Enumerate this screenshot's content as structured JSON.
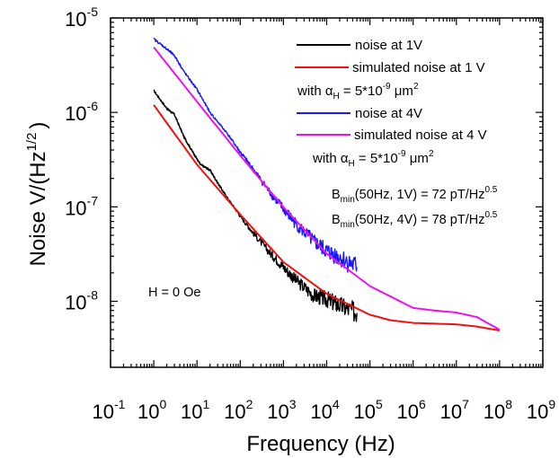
{
  "chart_data": {
    "type": "line",
    "xlabel": "Frequency (Hz)",
    "ylabel": "Noise V/(Hz",
    "ylabel_sup": "1/2",
    "ylabel_close": ")",
    "x_scale": "log",
    "y_scale": "log",
    "xlim": [
      0.1,
      1000000000
    ],
    "ylim": [
      2e-09,
      1e-05
    ],
    "x_ticks": [
      {
        "base": "10",
        "exp": "-1"
      },
      {
        "base": "10",
        "exp": "0"
      },
      {
        "base": "10",
        "exp": "1"
      },
      {
        "base": "10",
        "exp": "2"
      },
      {
        "base": "10",
        "exp": "3"
      },
      {
        "base": "10",
        "exp": "4"
      },
      {
        "base": "10",
        "exp": "5"
      },
      {
        "base": "10",
        "exp": "6"
      },
      {
        "base": "10",
        "exp": "7"
      },
      {
        "base": "10",
        "exp": "8"
      },
      {
        "base": "10",
        "exp": "9"
      }
    ],
    "y_ticks": [
      {
        "base": "10",
        "exp": "-8"
      },
      {
        "base": "10",
        "exp": "-7"
      },
      {
        "base": "10",
        "exp": "-6"
      },
      {
        "base": "10",
        "exp": "-5"
      }
    ],
    "series": [
      {
        "name": "noise at 1V",
        "color": "#000000",
        "noisy": true,
        "x": [
          1,
          2,
          3,
          5,
          8,
          12,
          20,
          30,
          50,
          100,
          200,
          500,
          1000,
          2000,
          5000,
          10000,
          20000,
          50000
        ],
        "y": [
          1.7e-06,
          1.1e-06,
          9.5e-07,
          5.5e-07,
          3.8e-07,
          2.8e-07,
          2.45e-07,
          1.8e-07,
          1.25e-07,
          8e-08,
          5.3e-08,
          3.2e-08,
          2.3e-08,
          1.65e-08,
          1.15e-08,
          1.05e-08,
          9e-09,
          7.5e-09
        ]
      },
      {
        "name": "simulated noise at 1 V",
        "color": "#ee1111",
        "noisy": false,
        "x": [
          1,
          10,
          100,
          1000,
          10000,
          100000,
          300000,
          1000000,
          3000000,
          10000000,
          30000000,
          100000000
        ],
        "y": [
          1.2e-06,
          2.8e-07,
          8.3e-08,
          2.6e-08,
          1.2e-08,
          7.2e-09,
          6.3e-09,
          5.9e-09,
          5.8e-09,
          5.7e-09,
          5.4e-09,
          4.9e-09
        ]
      },
      {
        "name": "noise at 4V",
        "color": "#1a1aee",
        "noisy": true,
        "x": [
          1,
          2,
          3,
          5,
          10,
          20,
          50,
          100,
          200,
          500,
          1000,
          2000,
          5000,
          10000,
          20000,
          50000
        ],
        "y": [
          6e-06,
          4.7e-06,
          4e-06,
          2.7e-06,
          1.75e-06,
          1e-06,
          6e-07,
          3.8e-07,
          2.5e-07,
          1.4e-07,
          9.5e-08,
          6.5e-08,
          4.3e-08,
          3.4e-08,
          2.9e-08,
          2.3e-08
        ]
      },
      {
        "name": "simulated noise at 4 V",
        "color": "#ee11ee",
        "noisy": false,
        "x": [
          1,
          10,
          100,
          1000,
          10000,
          100000,
          1000000,
          3000000,
          10000000,
          30000000,
          100000000
        ],
        "y": [
          4.9e-06,
          1.3e-06,
          3.5e-07,
          9.9e-08,
          3.2e-08,
          1.45e-08,
          8.5e-09,
          8e-09,
          7.6e-09,
          6.8e-09,
          5e-09
        ]
      }
    ],
    "legend_placement": "top-right",
    "grid": false
  },
  "legend": {
    "alpha_prefix": "with ",
    "alpha_symbol": "α",
    "alpha_sub": "H",
    "alpha_value": " = 5*10",
    "alpha_exp": "-9",
    "alpha_unit": " μm",
    "alpha_unit_exp": "2"
  },
  "annotations": {
    "bmin_sym": "B",
    "bmin_sub": "min",
    "bmin1_text": "(50Hz, 1V) = 72 pT/Hz",
    "bmin2_text": "(50Hz, 4V) = 78 pT/Hz",
    "bmin_exp": "0.5",
    "field_label": "H = 0 Oe"
  }
}
